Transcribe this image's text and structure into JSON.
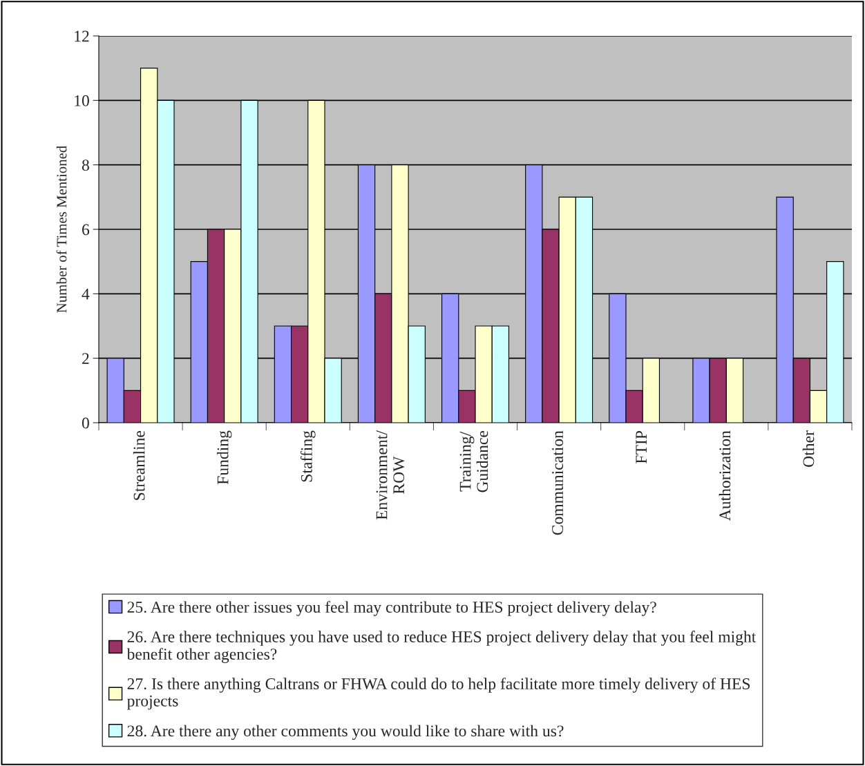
{
  "chart_data": {
    "type": "bar",
    "ylabel": "Number of Times Mentioned",
    "categories": [
      "Streamline",
      "Funding",
      "Staffing",
      "Environment/\nROW",
      "Training/\nGuidance",
      "Communication",
      "FTIP",
      "Authorization",
      "Other"
    ],
    "series": [
      {
        "name": "25. Are there other issues you feel may contribute to HES project delivery delay?",
        "color": "#9999ff",
        "values": [
          2,
          5,
          3,
          8,
          4,
          8,
          4,
          2,
          7
        ]
      },
      {
        "name": "26. Are there techniques you have used to reduce HES project delivery delay that you feel might\nbenefit other agencies?",
        "color": "#993366",
        "values": [
          1,
          6,
          3,
          4,
          1,
          6,
          1,
          2,
          2
        ]
      },
      {
        "name": "27. Is there anything Caltrans or FHWA could do to help facilitate more timely delivery of HES\nprojects",
        "color": "#ffffcc",
        "values": [
          11,
          6,
          10,
          8,
          3,
          7,
          2,
          2,
          1
        ]
      },
      {
        "name": "28. Are there any other comments you would like to share with us?",
        "color": "#ccffff",
        "values": [
          10,
          10,
          2,
          3,
          3,
          7,
          0,
          0,
          5
        ]
      }
    ],
    "ylim": [
      0,
      12
    ],
    "yticks": [
      0,
      2,
      4,
      6,
      8,
      10,
      12
    ],
    "grid": "y",
    "legend": "bottom"
  }
}
